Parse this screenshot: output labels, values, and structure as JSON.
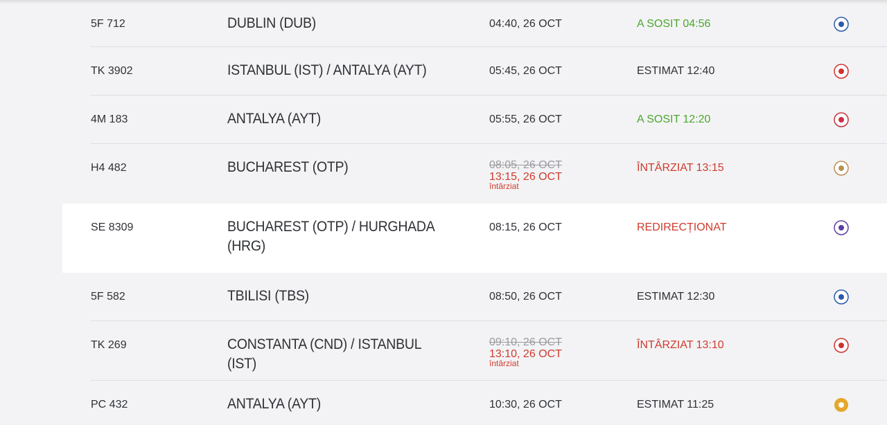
{
  "flights": [
    {
      "flight": "5F 712",
      "destination": "DUBLIN (DUB)",
      "time": "04:40, 26 OCT",
      "status": "A SOSIT 04:56",
      "status_color": "#4aa72c"
    },
    {
      "flight": "TK 3902",
      "destination": "ISTANBUL (IST) / ANTALYA (AYT)",
      "time": "05:45, 26 OCT",
      "status": "ESTIMAT 12:40",
      "status_color": "#2f3136"
    },
    {
      "flight": "4M 183",
      "destination": "ANTALYA (AYT)",
      "time": "05:55, 26 OCT",
      "status": "A SOSIT 12:20",
      "status_color": "#4aa72c"
    },
    {
      "flight": "H4 482",
      "destination": "BUCHAREST (OTP)",
      "time": "08:05, 26 OCT",
      "new_time": "13:15, 26 OCT",
      "delay_note": "întârziat",
      "status": "ÎNTÂRZIAT 13:15",
      "status_color": "#cf3b2c"
    },
    {
      "flight": "SE 8309",
      "destination": "BUCHAREST (OTP) / HURGHADA (HRG)",
      "time": "08:15, 26 OCT",
      "status": "REDIRECȚIONAT",
      "status_color": "#cf3b2c"
    },
    {
      "flight": "5F 582",
      "destination": "TBILISI (TBS)",
      "time": "08:50, 26 OCT",
      "status": "ESTIMAT 12:30",
      "status_color": "#2f3136"
    },
    {
      "flight": "TK 269",
      "destination": "CONSTANTA (CND) / ISTANBUL (IST)",
      "time": "09:10, 26 OCT",
      "new_time": "13:10, 26 OCT",
      "delay_note": "întârziat",
      "status": "ÎNTÂRZIAT 13:10",
      "status_color": "#cf3b2c"
    },
    {
      "flight": "PC 432",
      "destination": "ANTALYA (AYT)",
      "time": "10:30, 26 OCT",
      "status": "ESTIMAT 11:25",
      "status_color": "#2f3136"
    }
  ]
}
